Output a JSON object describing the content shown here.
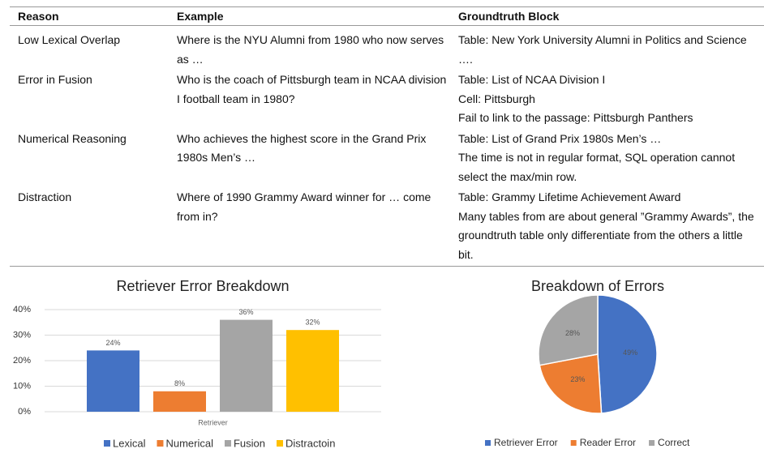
{
  "table": {
    "header": [
      "Reason",
      "Example",
      "Groundtruth Block"
    ],
    "rows": [
      [
        "Low Lexical Overlap",
        "Where is the NYU Alumni from 1980 who now serves as …",
        [
          "Table: New York University Alumni in Politics and Science …."
        ]
      ],
      [
        "Error in Fusion",
        "Who is the coach of Pittsburgh team in NCAA division I football team in 1980?",
        [
          "Table: List of NCAA Division I",
          "Cell: Pittsburgh",
          "Fail to link to the passage: Pittsburgh Panthers"
        ]
      ],
      [
        "Numerical Reasoning",
        "Who achieves the highest score in the Grand Prix 1980s Men’s …",
        [
          "Table: List of Grand Prix 1980s Men’s …",
          "The time is not in regular format, SQL operation cannot select the max/min row."
        ]
      ],
      [
        "Distraction",
        "Where  of 1990 Grammy Award winner for … come from in?",
        [
          "Table: Grammy Lifetime Achievement Award",
          "Many tables from are about general ”Grammy Awards”, the groundtruth table only differentiate from the others a little bit."
        ]
      ]
    ]
  },
  "chart_data": [
    {
      "type": "bar",
      "title": "Retriever Error Breakdown",
      "categories": [
        "Retriever"
      ],
      "series": [
        {
          "name": "Lexical",
          "color": "#4472c4",
          "values": [
            24
          ],
          "value_labels": [
            "24%"
          ]
        },
        {
          "name": "Numerical",
          "color": "#ed7d31",
          "values": [
            8
          ],
          "value_labels": [
            "8%"
          ]
        },
        {
          "name": "Fusion",
          "color": "#a5a5a5",
          "values": [
            36
          ],
          "value_labels": [
            "36%"
          ]
        },
        {
          "name": "Distractoin",
          "color": "#ffc000",
          "values": [
            32
          ],
          "value_labels": [
            "32%"
          ]
        }
      ],
      "ylim": [
        0,
        40
      ],
      "yticks": [
        {
          "value": 0,
          "label": "0%"
        },
        {
          "value": 10,
          "label": "10%"
        },
        {
          "value": 20,
          "label": "20%"
        },
        {
          "value": 30,
          "label": "30%"
        },
        {
          "value": 40,
          "label": "40%"
        }
      ],
      "grid": true,
      "legend": "bottom"
    },
    {
      "type": "pie",
      "title": "Breakdown of Errors",
      "categories": [
        "Retriever Error",
        "Reader Error",
        "Correct"
      ],
      "values": [
        49,
        23,
        28
      ],
      "value_labels": [
        "49%",
        "23%",
        "28%"
      ],
      "colors": [
        "#4472c4",
        "#ed7d31",
        "#a5a5a5"
      ],
      "legend": "bottom"
    }
  ]
}
